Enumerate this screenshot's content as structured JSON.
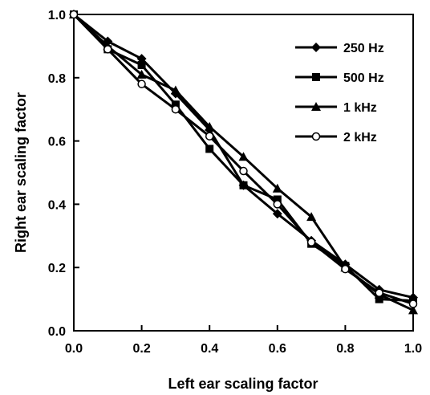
{
  "chart_data": {
    "type": "line",
    "xlabel": "Left ear scaling factor",
    "ylabel": "Right ear scaling factor",
    "xlim": [
      0,
      1
    ],
    "ylim": [
      0,
      1
    ],
    "x_ticks": [
      "0.0",
      "0.2",
      "0.4",
      "0.6",
      "0.8",
      "1.0"
    ],
    "y_ticks": [
      "0.0",
      "0.2",
      "0.4",
      "0.6",
      "0.8",
      "1.0"
    ],
    "grid": false,
    "legend_position": "top-right",
    "x": [
      0.0,
      0.1,
      0.2,
      0.3,
      0.4,
      0.5,
      0.6,
      0.7,
      0.8,
      0.9,
      1.0
    ],
    "series": [
      {
        "name": "250 Hz",
        "marker": "diamond",
        "values": [
          1.0,
          0.915,
          0.86,
          0.75,
          0.635,
          0.46,
          0.37,
          0.285,
          0.21,
          0.13,
          0.105
        ]
      },
      {
        "name": "500 Hz",
        "marker": "square",
        "values": [
          1.0,
          0.89,
          0.84,
          0.715,
          0.575,
          0.46,
          0.415,
          0.275,
          0.205,
          0.1,
          0.095
        ]
      },
      {
        "name": "1 kHz",
        "marker": "triangle",
        "values": [
          1.0,
          0.9,
          0.81,
          0.76,
          0.645,
          0.55,
          0.45,
          0.36,
          0.2,
          0.115,
          0.065
        ]
      },
      {
        "name": "2 kHz",
        "marker": "open-circle",
        "values": [
          1.0,
          0.89,
          0.78,
          0.7,
          0.615,
          0.505,
          0.4,
          0.28,
          0.195,
          0.12,
          0.085
        ]
      }
    ],
    "line_color": "#000000"
  }
}
